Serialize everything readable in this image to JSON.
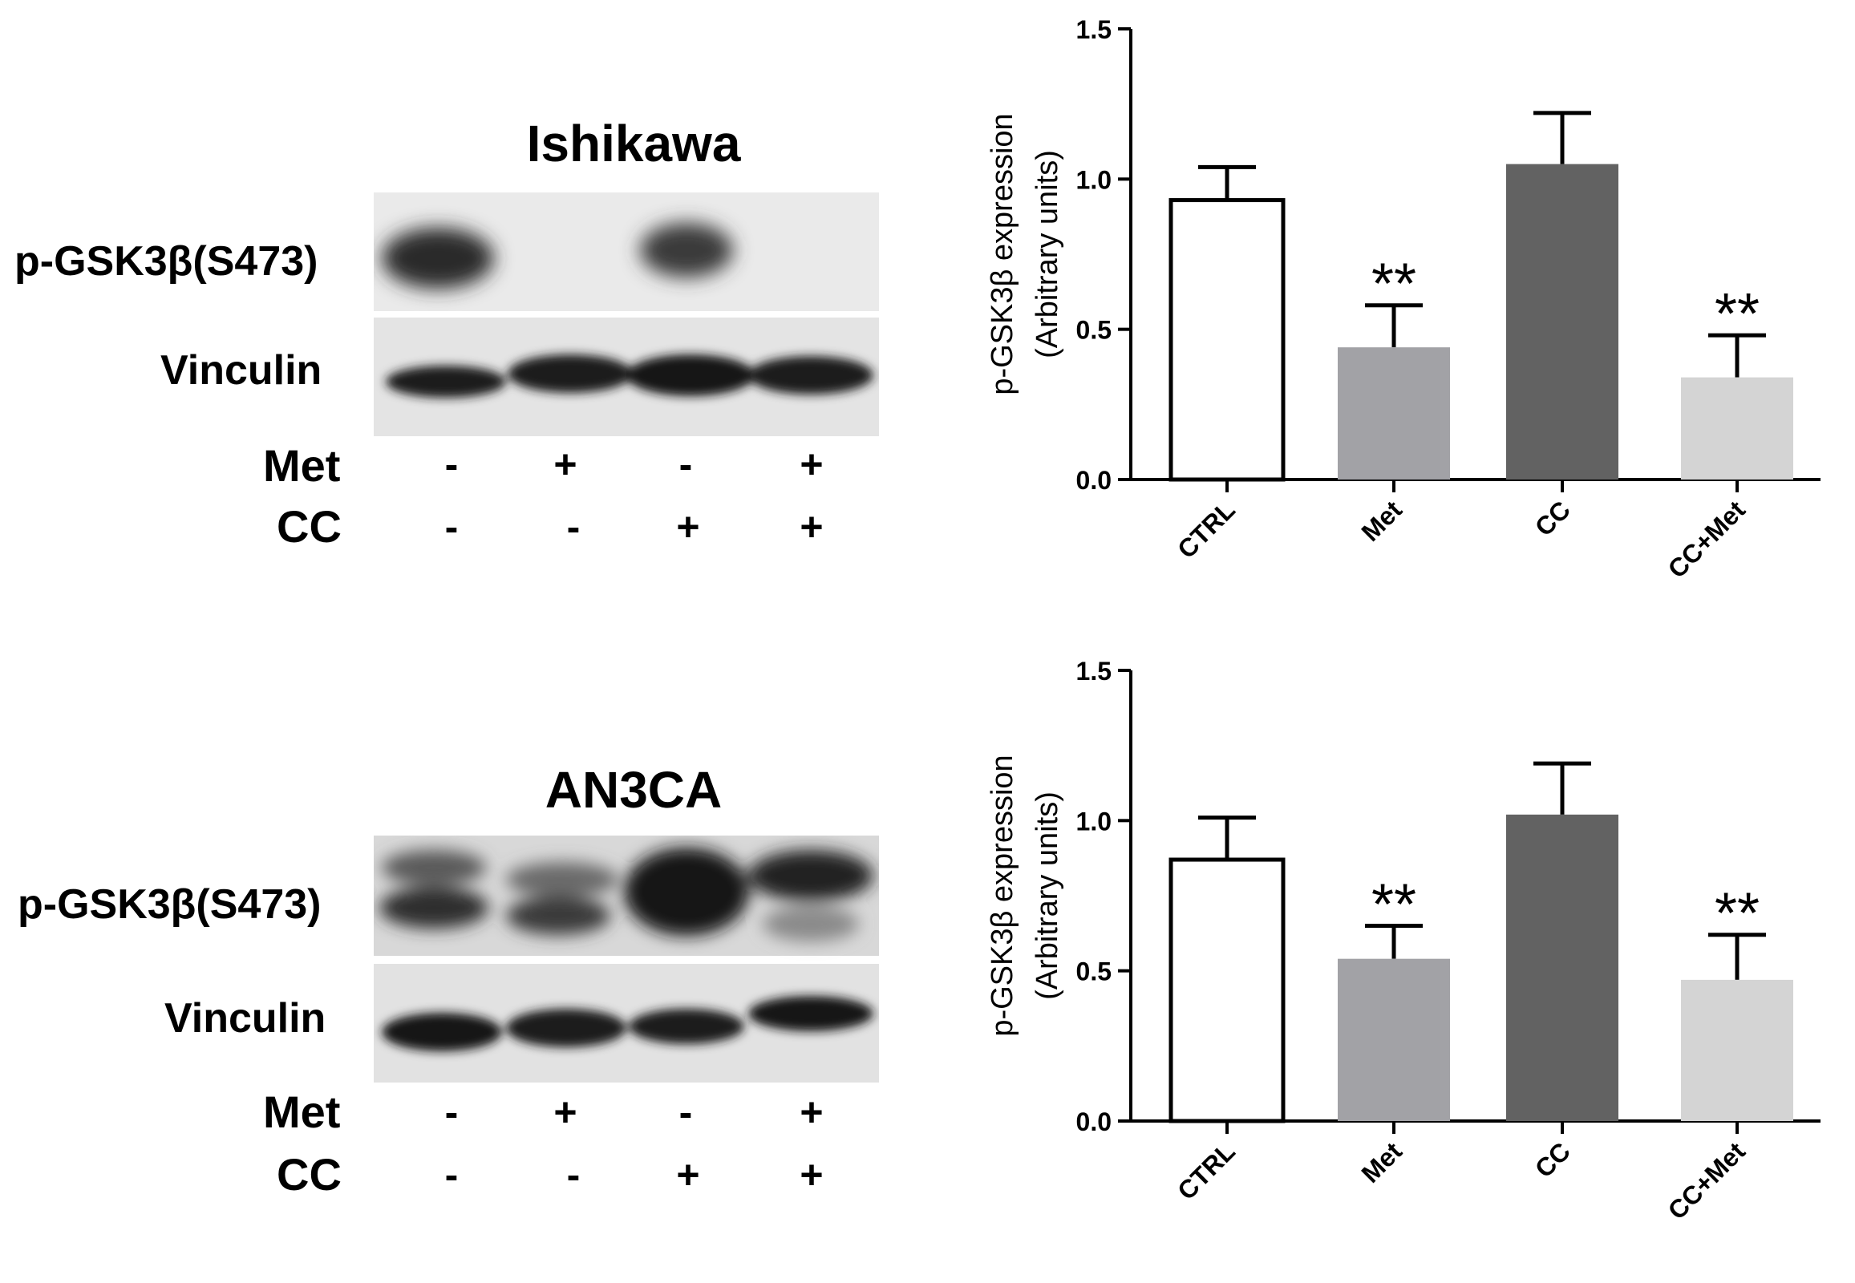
{
  "blots": [
    {
      "cell_line": "Ishikawa",
      "band_labels": [
        "p-GSK3β(S473)",
        "Vinculin"
      ],
      "treatments": [
        {
          "name": "Met",
          "signs": [
            "-",
            "+",
            "-",
            "+"
          ]
        },
        {
          "name": "CC",
          "signs": [
            "-",
            "-",
            "+",
            "+"
          ]
        }
      ]
    },
    {
      "cell_line": "AN3CA",
      "band_labels": [
        "p-GSK3β(S473)",
        "Vinculin"
      ],
      "treatments": [
        {
          "name": "Met",
          "signs": [
            "-",
            "+",
            "-",
            "+"
          ]
        },
        {
          "name": "CC",
          "signs": [
            "-",
            "-",
            "+",
            "+"
          ]
        }
      ]
    }
  ],
  "chart_data": [
    {
      "type": "bar",
      "categories": [
        "CTRL",
        "Met",
        "CC",
        "CC+Met"
      ],
      "values": [
        0.93,
        0.44,
        1.05,
        0.34
      ],
      "errors": [
        0.11,
        0.14,
        0.17,
        0.14
      ],
      "significance": [
        "",
        "**",
        "",
        "**"
      ],
      "colors": [
        "#ffffff",
        "#a2a2a6",
        "#626262",
        "#d4d4d4"
      ],
      "ylabel": "p-GSK3β expression",
      "ylabel2": "(Arbitrary units)",
      "ylim": [
        0,
        1.5
      ],
      "yticks": [
        "0.0",
        "0.5",
        "1.0",
        "1.5"
      ]
    },
    {
      "type": "bar",
      "categories": [
        "CTRL",
        "Met",
        "CC",
        "CC+Met"
      ],
      "values": [
        0.87,
        0.54,
        1.02,
        0.47
      ],
      "errors": [
        0.14,
        0.11,
        0.17,
        0.15
      ],
      "significance": [
        "",
        "**",
        "",
        "**"
      ],
      "colors": [
        "#ffffff",
        "#a2a2a6",
        "#626262",
        "#d4d4d4"
      ],
      "ylabel": "p-GSK3β expression",
      "ylabel2": "(Arbitrary units)",
      "ylim": [
        0,
        1.5
      ],
      "yticks": [
        "0.0",
        "0.5",
        "1.0",
        "1.5"
      ]
    }
  ]
}
